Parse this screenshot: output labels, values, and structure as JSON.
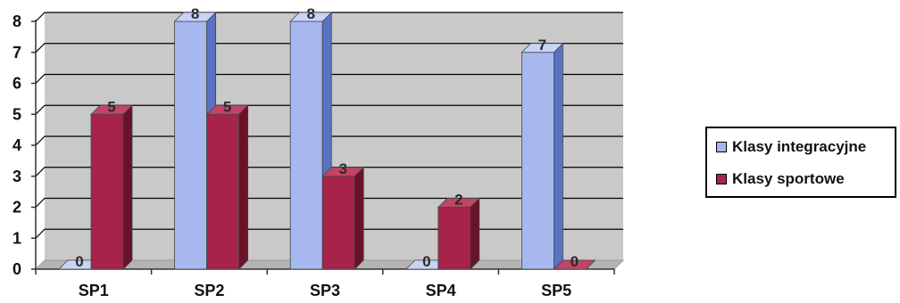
{
  "chart_data": {
    "type": "bar",
    "categories": [
      "SP1",
      "SP2",
      "SP3",
      "SP4",
      "SP5"
    ],
    "series": [
      {
        "name": "Klasy integracyjne",
        "values": [
          0,
          8,
          8,
          0,
          7
        ],
        "color": "#a6b8ee",
        "side_color": "#5a72c4",
        "top_color": "#c8d3f6"
      },
      {
        "name": "Klasy sportowe",
        "values": [
          5,
          5,
          3,
          2,
          0
        ],
        "color": "#a8234a",
        "side_color": "#6a1228",
        "top_color": "#c24466"
      }
    ],
    "yticks": [
      "0",
      "1",
      "2",
      "3",
      "4",
      "5",
      "6",
      "7",
      "8"
    ],
    "ylim": [
      0,
      8
    ],
    "grid": true,
    "legend_position": "right",
    "title": "",
    "xlabel": "",
    "ylabel": ""
  },
  "colors": {
    "plot_background": "#c9c9c9",
    "gridline": "#000000"
  }
}
